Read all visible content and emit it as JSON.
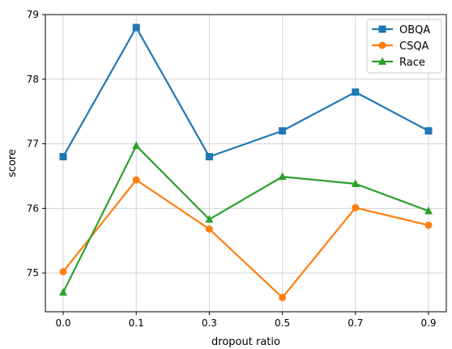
{
  "chart_data": {
    "type": "line",
    "title": "",
    "xlabel": "dropout ratio",
    "ylabel": "score",
    "x": [
      0.0,
      0.1,
      0.3,
      0.5,
      0.7,
      0.9
    ],
    "x_tick_labels": [
      "0.0",
      "0.1",
      "0.3",
      "0.5",
      "0.7",
      "0.9"
    ],
    "ylim": [
      74.4,
      79
    ],
    "y_ticks": [
      75,
      76,
      77,
      78,
      79
    ],
    "y_tick_labels": [
      "75",
      "76",
      "77",
      "78",
      "79"
    ],
    "grid": true,
    "legend_position": "top-right",
    "series": [
      {
        "name": "OBQA",
        "color": "#1f77b4",
        "marker": "square",
        "values": [
          76.8,
          78.8,
          76.8,
          77.2,
          77.8,
          77.2
        ]
      },
      {
        "name": "CSQA",
        "color": "#ff7f0e",
        "marker": "circle",
        "values": [
          75.02,
          76.44,
          75.68,
          74.62,
          76.01,
          75.74
        ]
      },
      {
        "name": "Race",
        "color": "#2ca02c",
        "marker": "triangle",
        "values": [
          74.7,
          76.97,
          75.83,
          76.49,
          76.38,
          75.96
        ]
      }
    ]
  }
}
